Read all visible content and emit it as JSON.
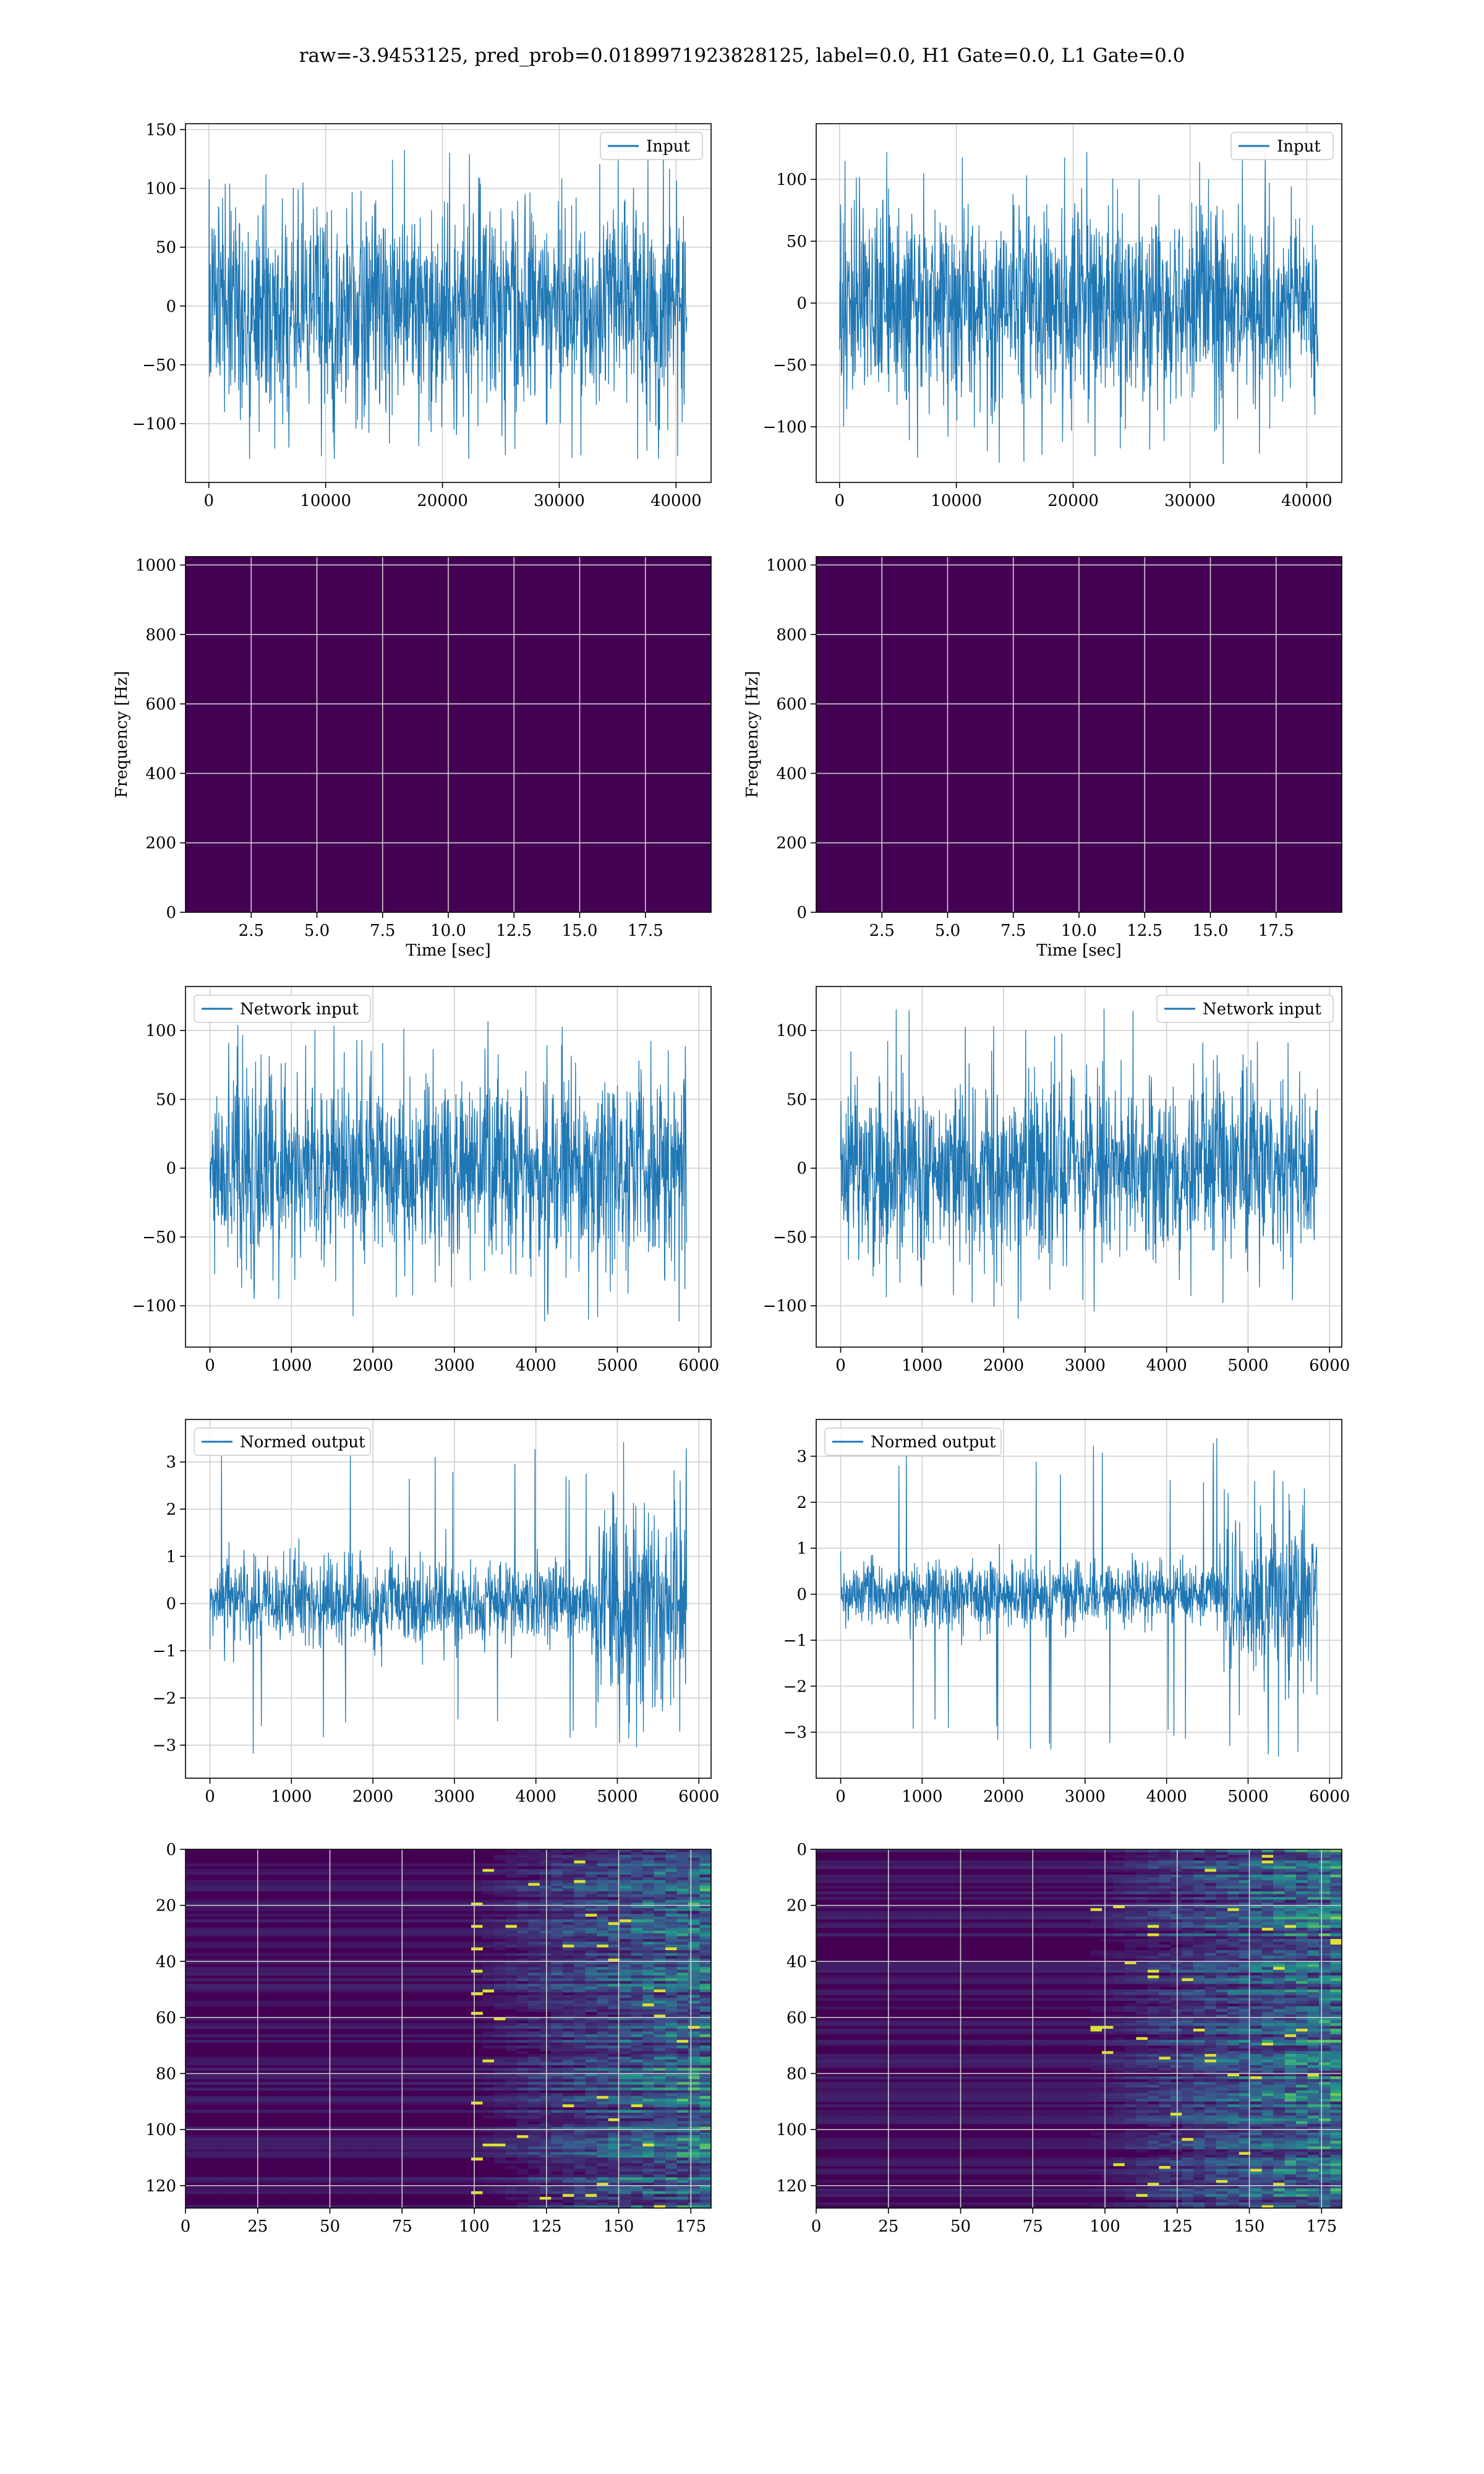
{
  "suptitle": "raw=-3.9453125, pred_prob=0.0189971923828125, label=0.0, H1 Gate=0.0, L1 Gate=0.0",
  "colors": {
    "line": "#1f77b4",
    "grid": "#d0d0d0",
    "viridis_dark": "#440154",
    "viridis_mid": "#21918c",
    "viridis_bright": "#fde725"
  },
  "chart_data": [
    {
      "id": "input-h1",
      "type": "line",
      "series": [
        {
          "name": "Input"
        }
      ],
      "legend_loc": "upper right",
      "x_range": [
        0,
        40960
      ],
      "amplitude": 45,
      "spike_max": 140,
      "spike_min": -130,
      "xlim": [
        -2000,
        43000
      ],
      "ylim": [
        -150,
        155
      ],
      "xticks": [
        0,
        10000,
        20000,
        30000,
        40000
      ],
      "yticks": [
        -100,
        -50,
        0,
        50,
        100,
        150
      ],
      "xlabel": "",
      "ylabel": ""
    },
    {
      "id": "input-l1",
      "type": "line",
      "series": [
        {
          "name": "Input"
        }
      ],
      "legend_loc": "upper right",
      "x_range": [
        0,
        40960
      ],
      "amplitude": 40,
      "spike_max": 122,
      "spike_min": -130,
      "xlim": [
        -2000,
        43000
      ],
      "ylim": [
        -145,
        145
      ],
      "xticks": [
        0,
        10000,
        20000,
        30000,
        40000
      ],
      "yticks": [
        -100,
        -50,
        0,
        50,
        100
      ],
      "xlabel": "",
      "ylabel": ""
    },
    {
      "id": "spec-h1",
      "type": "heatmap",
      "colormap": "viridis",
      "xlim": [
        0,
        20
      ],
      "ylim": [
        0,
        1024
      ],
      "xticks": [
        2.5,
        5.0,
        7.5,
        10.0,
        12.5,
        15.0,
        17.5
      ],
      "yticks": [
        0,
        200,
        400,
        600,
        800,
        1000
      ],
      "xlabel": "Time [sec]",
      "ylabel": "Frequency [Hz]"
    },
    {
      "id": "spec-l1",
      "type": "heatmap",
      "colormap": "viridis",
      "xlim": [
        0,
        20
      ],
      "ylim": [
        0,
        1024
      ],
      "xticks": [
        2.5,
        5.0,
        7.5,
        10.0,
        12.5,
        15.0,
        17.5
      ],
      "yticks": [
        0,
        200,
        400,
        600,
        800,
        1000
      ],
      "xlabel": "Time [sec]",
      "ylabel": "Frequency [Hz]"
    },
    {
      "id": "netin-h1",
      "type": "line",
      "series": [
        {
          "name": "Network input"
        }
      ],
      "legend_loc": "upper left",
      "x_range": [
        0,
        5850
      ],
      "amplitude": 35,
      "spike_max": 120,
      "spike_min": -112,
      "xlim": [
        -300,
        6150
      ],
      "ylim": [
        -130,
        132
      ],
      "xticks": [
        0,
        1000,
        2000,
        3000,
        4000,
        5000,
        6000
      ],
      "yticks": [
        -100,
        -50,
        0,
        50,
        100
      ],
      "xlabel": "",
      "ylabel": ""
    },
    {
      "id": "netin-l1",
      "type": "line",
      "series": [
        {
          "name": "Network input"
        }
      ],
      "legend_loc": "upper right",
      "x_range": [
        0,
        5850
      ],
      "amplitude": 32,
      "spike_max": 117,
      "spike_min": -118,
      "xlim": [
        -300,
        6150
      ],
      "ylim": [
        -130,
        132
      ],
      "xticks": [
        0,
        1000,
        2000,
        3000,
        4000,
        5000,
        6000
      ],
      "yticks": [
        -100,
        -50,
        0,
        50,
        100
      ],
      "xlabel": "",
      "ylabel": ""
    },
    {
      "id": "normout-h1",
      "type": "line",
      "series": [
        {
          "name": "Normed output"
        }
      ],
      "legend_loc": "upper left",
      "x_range": [
        0,
        5850
      ],
      "amplitude": 0.45,
      "burst_start": 4750,
      "burst_amplitude": 1.1,
      "spike_max": 3.6,
      "spike_min": -3.3,
      "xlim": [
        -300,
        6150
      ],
      "ylim": [
        -3.7,
        3.9
      ],
      "xticks": [
        0,
        1000,
        2000,
        3000,
        4000,
        5000,
        6000
      ],
      "yticks": [
        -3,
        -2,
        -1,
        0,
        1,
        2,
        3
      ],
      "xlabel": "",
      "ylabel": ""
    },
    {
      "id": "normout-l1",
      "type": "line",
      "series": [
        {
          "name": "Normed output"
        }
      ],
      "legend_loc": "upper left",
      "x_range": [
        0,
        5850
      ],
      "amplitude": 0.35,
      "burst_start": 4700,
      "burst_amplitude": 0.9,
      "spike_max": 3.4,
      "spike_min": -3.6,
      "xlim": [
        -300,
        6150
      ],
      "ylim": [
        -4.0,
        3.8
      ],
      "xticks": [
        0,
        1000,
        2000,
        3000,
        4000,
        5000,
        6000
      ],
      "yticks": [
        -3,
        -2,
        -1,
        0,
        1,
        2,
        3
      ],
      "xlabel": "",
      "ylabel": ""
    },
    {
      "id": "feat-h1",
      "type": "heatmap",
      "colormap": "viridis",
      "xlim": [
        0,
        182
      ],
      "ylim": [
        128,
        0
      ],
      "bright_from_col": 100,
      "xticks": [
        0,
        25,
        50,
        75,
        100,
        125,
        150,
        175
      ],
      "yticks": [
        0,
        20,
        40,
        60,
        80,
        100,
        120
      ],
      "xlabel": "",
      "ylabel": ""
    },
    {
      "id": "feat-l1",
      "type": "heatmap",
      "colormap": "viridis",
      "xlim": [
        0,
        182
      ],
      "ylim": [
        128,
        0
      ],
      "bright_from_col": 95,
      "xticks": [
        0,
        25,
        50,
        75,
        100,
        125,
        150,
        175
      ],
      "yticks": [
        0,
        20,
        40,
        60,
        80,
        100,
        120
      ],
      "xlabel": "",
      "ylabel": ""
    }
  ]
}
